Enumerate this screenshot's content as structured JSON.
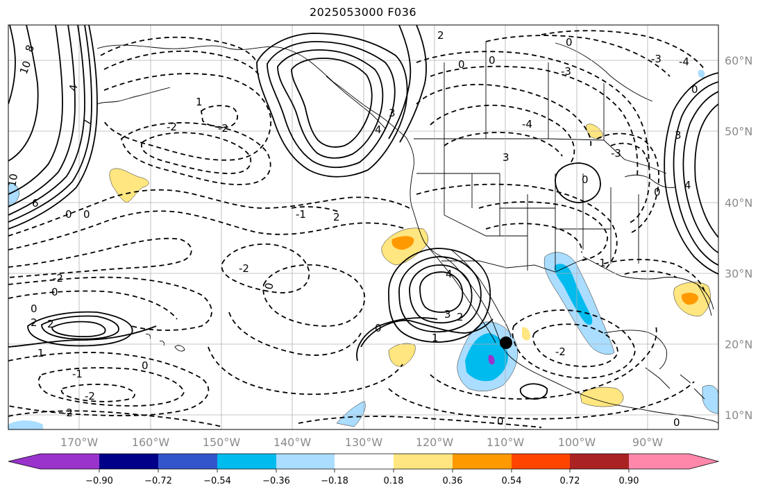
{
  "title": "2025053000 F036",
  "lon_labels": [
    "170°W",
    "160°W",
    "150°W",
    "140°W",
    "130°W",
    "120°W",
    "110°W",
    "100°W",
    "90°W"
  ],
  "lat_labels": [
    "60°N",
    "50°N",
    "40°N",
    "30°N",
    "20°N",
    "10°N"
  ],
  "colorbar": {
    "colors": [
      "#9933cc",
      "#000088",
      "#3355cc",
      "#00bbee",
      "#aaddff",
      "#ffffff",
      "#ffe680",
      "#ff9900",
      "#ff4400",
      "#aa2222",
      "#ff88aa"
    ],
    "ticks": [
      "−0.90",
      "−0.72",
      "−0.54",
      "−0.36",
      "−0.18",
      "0.18",
      "0.36",
      "0.54",
      "0.72",
      "0.90"
    ]
  },
  "contour_labels": [
    "8",
    "10",
    "4",
    "2",
    "1",
    "0",
    "-1",
    "-2",
    "-3",
    "-4",
    "3",
    "4",
    "6",
    "10",
    "7",
    "2",
    "1",
    "0",
    "-1",
    "-2",
    "0",
    "-2",
    "-1",
    "0",
    "0",
    "2",
    "1",
    "3",
    "-3",
    "-4",
    "0",
    "4"
  ],
  "marker": {
    "name": "storm-center-marker",
    "lon": -110,
    "lat": 20
  }
}
